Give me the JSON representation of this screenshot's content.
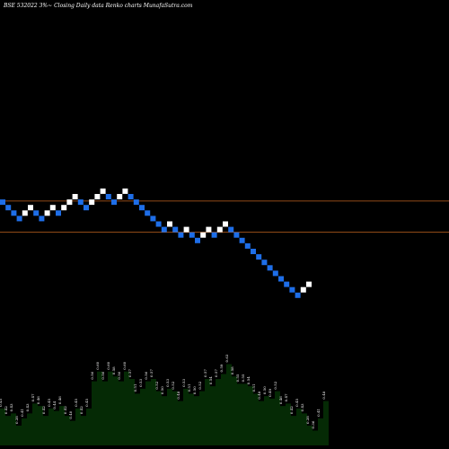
{
  "chart_title": "BSE 532022  3%~  Closing Daily data  Renko  charts MunafaSutra.com",
  "chart_data": {
    "type": "renko",
    "box_size_pct": 3,
    "colors": {
      "up_brick": "#ffffff",
      "down_brick": "#1e6ee8",
      "level_line": "#c0621f",
      "volume_fill": "#052a05",
      "background": "#000000"
    },
    "bricks": [
      {
        "dir": "down",
        "level": 27
      },
      {
        "dir": "down",
        "level": 26
      },
      {
        "dir": "down",
        "level": 25
      },
      {
        "dir": "down",
        "level": 24
      },
      {
        "dir": "up",
        "level": 25
      },
      {
        "dir": "up",
        "level": 26
      },
      {
        "dir": "down",
        "level": 25
      },
      {
        "dir": "down",
        "level": 24
      },
      {
        "dir": "up",
        "level": 25
      },
      {
        "dir": "up",
        "level": 26
      },
      {
        "dir": "down",
        "level": 25
      },
      {
        "dir": "up",
        "level": 26
      },
      {
        "dir": "up",
        "level": 27
      },
      {
        "dir": "up",
        "level": 28
      },
      {
        "dir": "down",
        "level": 27
      },
      {
        "dir": "down",
        "level": 26
      },
      {
        "dir": "up",
        "level": 27
      },
      {
        "dir": "up",
        "level": 28
      },
      {
        "dir": "up",
        "level": 29
      },
      {
        "dir": "down",
        "level": 28
      },
      {
        "dir": "down",
        "level": 27
      },
      {
        "dir": "up",
        "level": 28
      },
      {
        "dir": "up",
        "level": 29
      },
      {
        "dir": "down",
        "level": 28
      },
      {
        "dir": "down",
        "level": 27
      },
      {
        "dir": "down",
        "level": 26
      },
      {
        "dir": "down",
        "level": 25
      },
      {
        "dir": "down",
        "level": 24
      },
      {
        "dir": "down",
        "level": 23
      },
      {
        "dir": "down",
        "level": 22
      },
      {
        "dir": "up",
        "level": 23
      },
      {
        "dir": "down",
        "level": 22
      },
      {
        "dir": "down",
        "level": 21
      },
      {
        "dir": "up",
        "level": 22
      },
      {
        "dir": "down",
        "level": 21
      },
      {
        "dir": "down",
        "level": 20
      },
      {
        "dir": "up",
        "level": 21
      },
      {
        "dir": "up",
        "level": 22
      },
      {
        "dir": "down",
        "level": 21
      },
      {
        "dir": "up",
        "level": 22
      },
      {
        "dir": "up",
        "level": 23
      },
      {
        "dir": "down",
        "level": 22
      },
      {
        "dir": "down",
        "level": 21
      },
      {
        "dir": "down",
        "level": 20
      },
      {
        "dir": "down",
        "level": 19
      },
      {
        "dir": "down",
        "level": 18
      },
      {
        "dir": "down",
        "level": 17
      },
      {
        "dir": "down",
        "level": 16
      },
      {
        "dir": "down",
        "level": 15
      },
      {
        "dir": "down",
        "level": 14
      },
      {
        "dir": "down",
        "level": 13
      },
      {
        "dir": "down",
        "level": 12
      },
      {
        "dir": "down",
        "level": 11
      },
      {
        "dir": "down",
        "level": 10
      },
      {
        "dir": "up",
        "level": 11
      },
      {
        "dir": "up",
        "level": 12
      }
    ],
    "reference_levels": [
      27.2,
      21.5
    ],
    "volume_labels": [
      "0.45",
      "0.42",
      "0.43",
      "0.38",
      "0.41",
      "0.43",
      "0.47",
      "0.46",
      "0.42",
      "0.45",
      "0.44",
      "0.46",
      "0.42",
      "0.40",
      "0.45",
      "0.42",
      "0.45",
      "0.56",
      "0.60",
      "0.56",
      "0.60",
      "0.58",
      "0.56",
      "0.60",
      "0.57",
      "0.51",
      "0.53",
      "0.56",
      "0.57",
      "0.52",
      "0.50",
      "0.53",
      "0.52",
      "0.48",
      "0.53",
      "0.51",
      "0.50",
      "0.52",
      "0.57",
      "0.54",
      "0.57",
      "0.59",
      "0.63",
      "0.58",
      "0.55",
      "0.55",
      "0.54",
      "0.51",
      "0.48",
      "0.50",
      "0.49",
      "0.52",
      "0.46",
      "0.47",
      "0.42",
      "0.45",
      "0.43",
      "0.38",
      "0.36",
      "0.41",
      "0.48"
    ]
  }
}
